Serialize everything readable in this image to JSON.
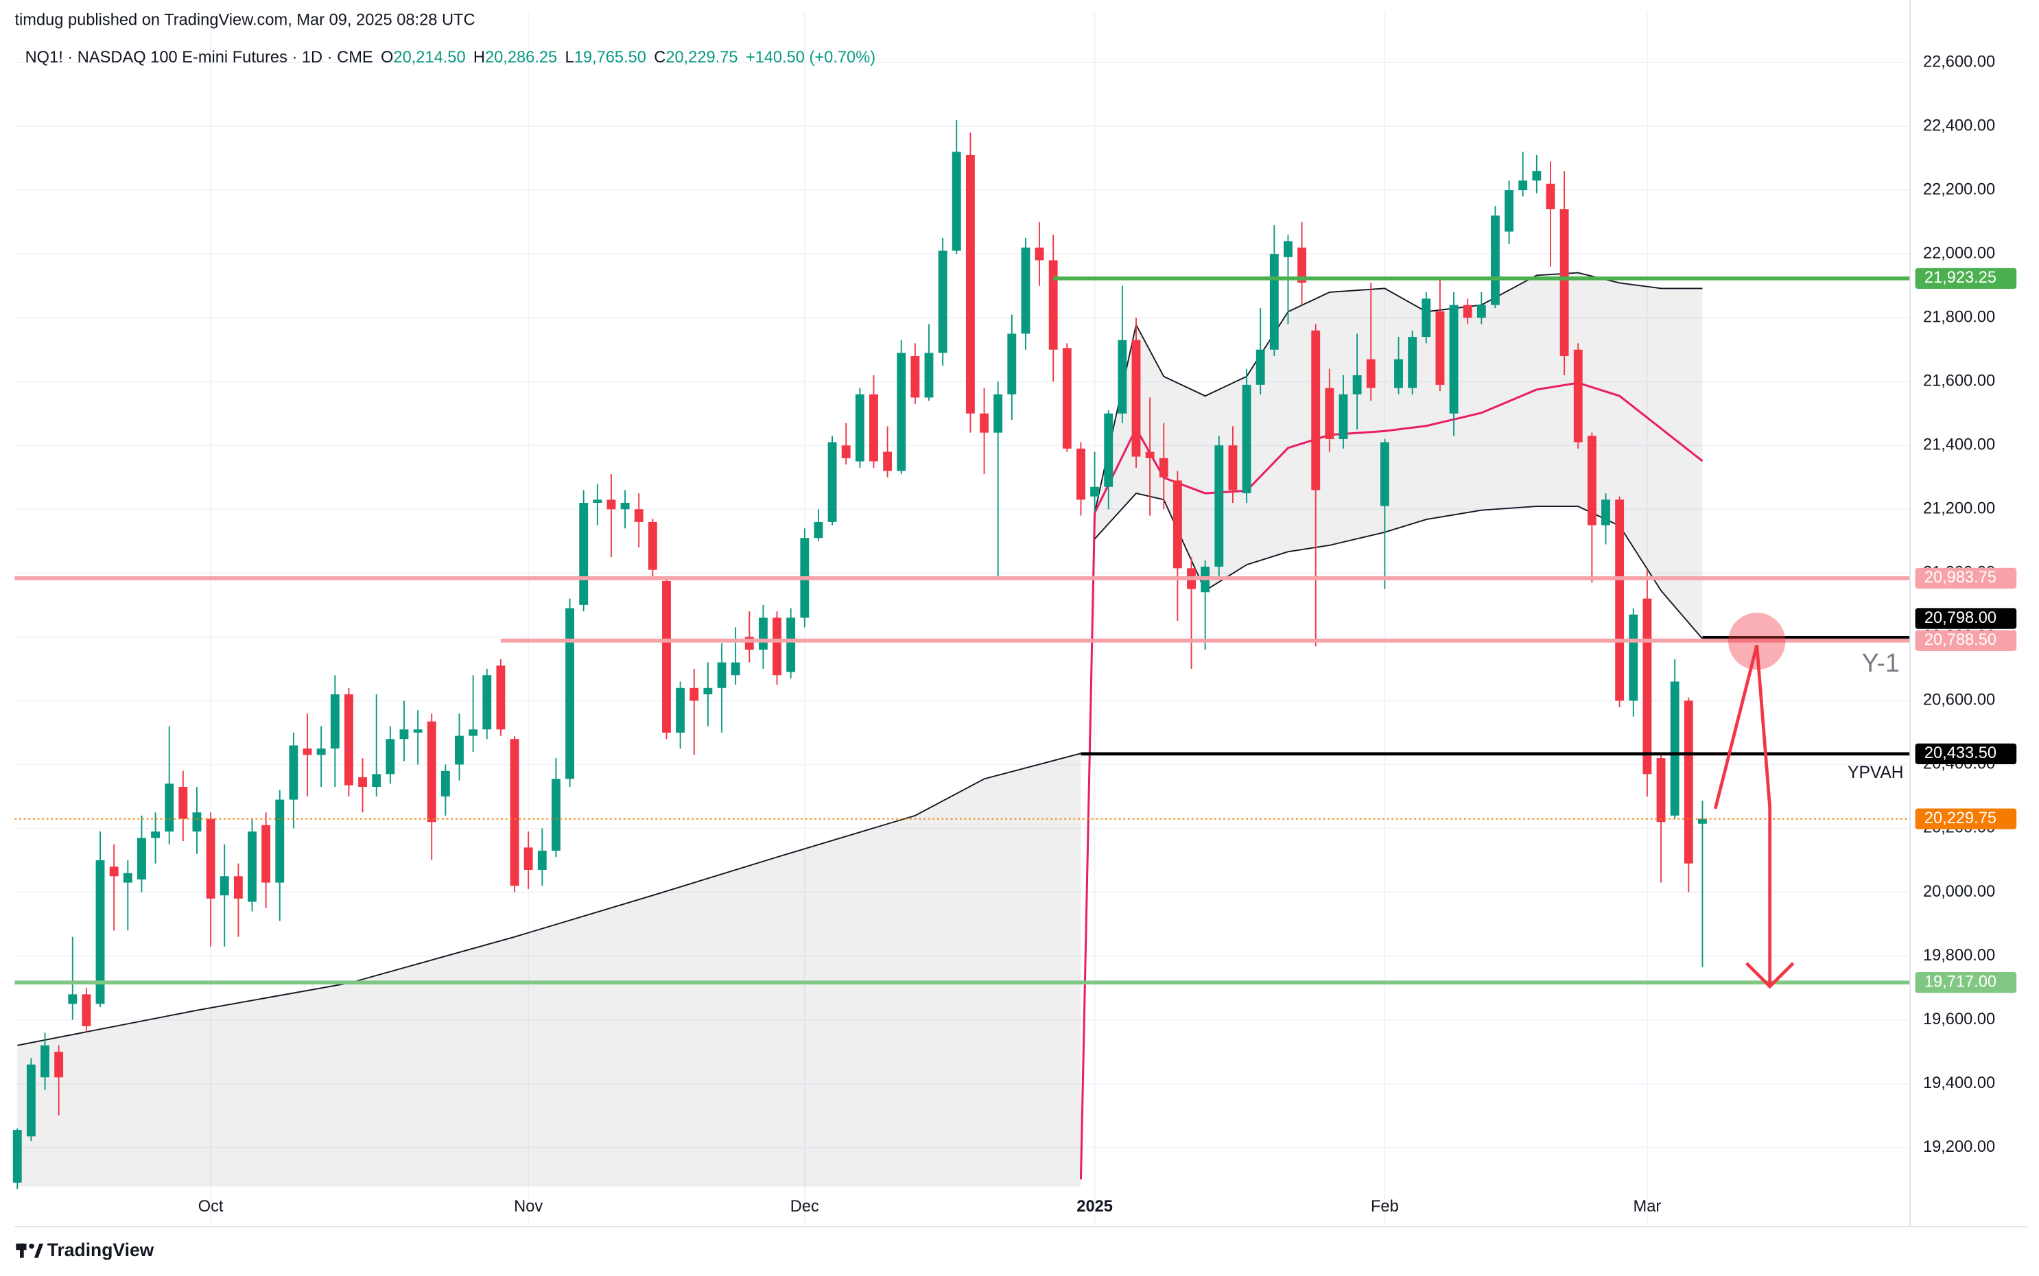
{
  "publisher": "timdug published on TradingView.com, Mar 09, 2025 08:28 UTC",
  "brand": "TradingView",
  "chart_data": {
    "type": "candlestick",
    "title": "NQ1! · NASDAQ 100 E-mini Futures · 1D · CME",
    "legend_values": [
      {
        "key": "O",
        "value": "20,214.50"
      },
      {
        "key": "H",
        "value": "20,286.25"
      },
      {
        "key": "L",
        "value": "19,765.50"
      },
      {
        "key": "C",
        "value": "20,229.75"
      }
    ],
    "change": "+140.50 (+0.70%)",
    "up_color": "#089981",
    "down_color": "#f23645",
    "ylim": [
      19078,
      22755
    ],
    "yticks": [
      {
        "value": 19200,
        "label": "19,200.00"
      },
      {
        "value": 19400,
        "label": "19,400.00"
      },
      {
        "value": 19600,
        "label": "19,600.00"
      },
      {
        "value": 19800,
        "label": "19,800.00"
      },
      {
        "value": 20000,
        "label": "20,000.00"
      },
      {
        "value": 20200,
        "label": "20,200.00"
      },
      {
        "value": 20400,
        "label": "20,400.00"
      },
      {
        "value": 20600,
        "label": "20,600.00"
      },
      {
        "value": 20800,
        "label": "20,800.00"
      },
      {
        "value": 21000,
        "label": "21,000.00"
      },
      {
        "value": 21200,
        "label": "21,200.00"
      },
      {
        "value": 21400,
        "label": "21,400.00"
      },
      {
        "value": 21600,
        "label": "21,600.00"
      },
      {
        "value": 21800,
        "label": "21,800.00"
      },
      {
        "value": 22000,
        "label": "22,000.00"
      },
      {
        "value": 22200,
        "label": "22,200.00"
      },
      {
        "value": 22400,
        "label": "22,400.00"
      },
      {
        "value": 22600,
        "label": "22,600.00"
      }
    ],
    "grid": true,
    "categories": [
      null,
      null,
      null,
      null,
      null,
      null,
      null,
      null,
      null,
      null,
      null,
      null,
      null,
      null,
      "Oct",
      null,
      null,
      null,
      null,
      null,
      null,
      null,
      null,
      null,
      null,
      null,
      null,
      null,
      null,
      null,
      null,
      null,
      null,
      null,
      null,
      null,
      null,
      "Nov",
      null,
      null,
      null,
      null,
      null,
      null,
      null,
      null,
      null,
      null,
      null,
      null,
      null,
      null,
      null,
      null,
      null,
      null,
      null,
      "Dec",
      null,
      null,
      null,
      null,
      null,
      null,
      null,
      null,
      null,
      null,
      null,
      null,
      null,
      null,
      null,
      null,
      null,
      null,
      null,
      null,
      "2025",
      null,
      null,
      null,
      null,
      null,
      null,
      null,
      null,
      null,
      null,
      null,
      null,
      null,
      null,
      null,
      null,
      null,
      null,
      null,
      null,
      "Feb",
      null,
      null,
      null,
      null,
      null,
      null,
      null,
      null,
      null,
      null,
      null,
      null,
      null,
      null,
      null,
      null,
      null,
      null,
      "Mar",
      null,
      null,
      null,
      null
    ],
    "candles": [
      [
        19090,
        19260,
        19070,
        19255
      ],
      [
        19235,
        19480,
        19220,
        19460
      ],
      [
        19420,
        19560,
        19380,
        19520
      ],
      [
        19500,
        19520,
        19300,
        19420
      ],
      [
        19650,
        19860,
        19600,
        19680
      ],
      [
        19680,
        19700,
        19560,
        19580
      ],
      [
        19650,
        20190,
        19640,
        20100
      ],
      [
        20080,
        20150,
        19880,
        20050
      ],
      [
        20030,
        20100,
        19880,
        20060
      ],
      [
        20040,
        20240,
        20000,
        20170
      ],
      [
        20170,
        20250,
        20090,
        20190
      ],
      [
        20190,
        20520,
        20150,
        20340
      ],
      [
        20330,
        20380,
        20160,
        20230
      ],
      [
        20190,
        20330,
        20120,
        20250
      ],
      [
        20230,
        20250,
        19830,
        19980
      ],
      [
        19990,
        20150,
        19830,
        20050
      ],
      [
        20050,
        20090,
        19860,
        19980
      ],
      [
        19970,
        20230,
        19940,
        20190
      ],
      [
        20210,
        20250,
        19950,
        20030
      ],
      [
        20030,
        20320,
        19910,
        20290
      ],
      [
        20290,
        20500,
        20200,
        20460
      ],
      [
        20450,
        20560,
        20300,
        20430
      ],
      [
        20430,
        20520,
        20330,
        20450
      ],
      [
        20450,
        20680,
        20330,
        20620
      ],
      [
        20620,
        20640,
        20300,
        20335
      ],
      [
        20360,
        20420,
        20250,
        20330
      ],
      [
        20330,
        20620,
        20300,
        20370
      ],
      [
        20370,
        20520,
        20340,
        20480
      ],
      [
        20480,
        20600,
        20410,
        20510
      ],
      [
        20500,
        20570,
        20400,
        20510
      ],
      [
        20535,
        20560,
        20100,
        20220
      ],
      [
        20300,
        20400,
        20240,
        20380
      ],
      [
        20400,
        20560,
        20350,
        20490
      ],
      [
        20490,
        20680,
        20440,
        20510
      ],
      [
        20510,
        20700,
        20480,
        20680
      ],
      [
        20710,
        20730,
        20490,
        20510
      ],
      [
        20480,
        20490,
        20000,
        20020
      ],
      [
        20140,
        20190,
        20010,
        20070
      ],
      [
        20070,
        20200,
        20020,
        20130
      ],
      [
        20130,
        20420,
        20110,
        20355
      ],
      [
        20355,
        20920,
        20330,
        20890
      ],
      [
        20900,
        21260,
        20880,
        21220
      ],
      [
        21220,
        21280,
        21150,
        21230
      ],
      [
        21230,
        21310,
        21050,
        21200
      ],
      [
        21200,
        21260,
        21140,
        21220
      ],
      [
        21200,
        21250,
        21080,
        21160
      ],
      [
        21160,
        21170,
        20990,
        21010
      ],
      [
        20975,
        20980,
        20480,
        20500
      ],
      [
        20500,
        20660,
        20450,
        20640
      ],
      [
        20640,
        20700,
        20430,
        20600
      ],
      [
        20620,
        20720,
        20520,
        20640
      ],
      [
        20640,
        20780,
        20500,
        20720
      ],
      [
        20680,
        20830,
        20650,
        20720
      ],
      [
        20800,
        20880,
        20720,
        20760
      ],
      [
        20760,
        20900,
        20700,
        20860
      ],
      [
        20860,
        20880,
        20650,
        20680
      ],
      [
        20690,
        20890,
        20670,
        20860
      ],
      [
        20860,
        21140,
        20830,
        21110
      ],
      [
        21110,
        21200,
        21100,
        21160
      ],
      [
        21160,
        21430,
        21150,
        21410
      ],
      [
        21400,
        21470,
        21340,
        21360
      ],
      [
        21350,
        21580,
        21330,
        21560
      ],
      [
        21560,
        21620,
        21330,
        21350
      ],
      [
        21380,
        21460,
        21300,
        21320
      ],
      [
        21320,
        21730,
        21310,
        21690
      ],
      [
        21680,
        21720,
        21530,
        21550
      ],
      [
        21550,
        21780,
        21540,
        21690
      ],
      [
        21690,
        22050,
        21650,
        22010
      ],
      [
        22010,
        22420,
        22000,
        22320
      ],
      [
        22310,
        22380,
        21440,
        21500
      ],
      [
        21500,
        21580,
        21310,
        21440
      ],
      [
        21440,
        21600,
        20990,
        21560
      ],
      [
        21560,
        21810,
        21480,
        21750
      ],
      [
        21750,
        22050,
        21700,
        22020
      ],
      [
        22020,
        22100,
        21900,
        21980
      ],
      [
        21980,
        22060,
        21600,
        21700
      ],
      [
        21705,
        21720,
        21380,
        21390
      ],
      [
        21390,
        21410,
        21180,
        21230
      ],
      [
        21240,
        21380,
        21190,
        21270
      ],
      [
        21270,
        21510,
        21200,
        21500
      ],
      [
        21500,
        21900,
        21470,
        21730
      ],
      [
        21730,
        21800,
        21330,
        21365
      ],
      [
        21380,
        21550,
        21180,
        21360
      ],
      [
        21360,
        21470,
        21200,
        21300
      ],
      [
        21290,
        21320,
        20850,
        21015
      ],
      [
        21015,
        21050,
        20700,
        20950
      ],
      [
        20940,
        21040,
        20760,
        21020
      ],
      [
        21020,
        21430,
        20990,
        21400
      ],
      [
        21400,
        21460,
        21220,
        21260
      ],
      [
        21250,
        21640,
        21220,
        21590
      ],
      [
        21590,
        21830,
        21560,
        21700
      ],
      [
        21700,
        22090,
        21680,
        22000
      ],
      [
        21990,
        22060,
        21780,
        22040
      ],
      [
        22020,
        22100,
        21840,
        21910
      ],
      [
        21760,
        21780,
        20770,
        21260
      ],
      [
        21580,
        21640,
        21380,
        21420
      ],
      [
        21420,
        21620,
        21390,
        21560
      ],
      [
        21560,
        21750,
        21450,
        21620
      ],
      [
        21670,
        21910,
        21540,
        21580
      ],
      [
        21210,
        21420,
        20950,
        21410
      ],
      [
        21580,
        21740,
        21560,
        21670
      ],
      [
        21580,
        21760,
        21560,
        21740
      ],
      [
        21740,
        21880,
        21720,
        21860
      ],
      [
        21820,
        21920,
        21570,
        21590
      ],
      [
        21500,
        21880,
        21430,
        21840
      ],
      [
        21840,
        21860,
        21780,
        21800
      ],
      [
        21800,
        21880,
        21780,
        21840
      ],
      [
        21840,
        22150,
        21830,
        22120
      ],
      [
        22070,
        22230,
        22030,
        22200
      ],
      [
        22200,
        22320,
        22180,
        22230
      ],
      [
        22230,
        22310,
        22190,
        22260
      ],
      [
        22220,
        22290,
        21960,
        22140
      ],
      [
        22140,
        22260,
        21620,
        21680
      ],
      [
        21700,
        21720,
        21390,
        21410
      ],
      [
        21430,
        21440,
        20970,
        21150
      ],
      [
        21150,
        21250,
        21090,
        21230
      ],
      [
        21230,
        21240,
        20580,
        20600
      ],
      [
        20600,
        20890,
        20550,
        20870
      ],
      [
        20920,
        21010,
        20300,
        20370
      ],
      [
        20420,
        20430,
        20030,
        20220
      ],
      [
        20240,
        20730,
        20230,
        20660
      ],
      [
        20600,
        20610,
        20000,
        20090
      ],
      [
        20214.5,
        20286.25,
        19765.5,
        20229.75
      ]
    ],
    "series": [
      {
        "color": "#131722",
        "x": [
          0,
          13,
          24,
          36,
          46,
          55,
          65,
          70,
          77
        ],
        "values": [
          19520,
          19630,
          19715,
          19860,
          19990,
          20110,
          20240,
          20355,
          20435
        ]
      },
      {
        "color": "#131722",
        "x": [
          78,
          81,
          83,
          86,
          89,
          92,
          95,
          99,
          102,
          106,
          110,
          113,
          116,
          119,
          122
        ],
        "values": [
          21189,
          21778,
          21616,
          21555,
          21616,
          21819,
          21880,
          21892,
          21819,
          21840,
          21933,
          21941,
          21909,
          21892,
          21892
        ]
      },
      {
        "color": "#e91e63",
        "x": [
          77,
          78,
          81,
          83,
          86,
          89,
          92,
          95,
          99,
          102,
          106,
          110,
          113,
          116,
          119,
          122
        ],
        "values": [
          19100,
          21189,
          21453,
          21299,
          21250,
          21258,
          21392,
          21433,
          21445,
          21461,
          21502,
          21575,
          21596,
          21555,
          21453,
          21351
        ]
      },
      {
        "color": "#131722",
        "x": [
          78,
          81,
          83,
          86,
          89,
          92,
          95,
          99,
          102,
          106,
          110,
          113,
          116,
          119,
          122
        ],
        "values": [
          21107,
          21250,
          21230,
          20945,
          21026,
          21067,
          21087,
          21128,
          21168,
          21197,
          21209,
          21209,
          21148,
          20945,
          20794
        ]
      }
    ],
    "hlines": [
      {
        "value": 21923.25,
        "label": "21,923.25",
        "color": "#4caf50",
        "x_start": 75
      },
      {
        "value": 20983.75,
        "label": "20,983.75",
        "color": "#f7a1a8"
      },
      {
        "value": 20798,
        "label": "20,798.00",
        "color": "#000000",
        "x_start": 122
      },
      {
        "value": 20788.5,
        "label": "20,788.50",
        "color": "#f7a1a8",
        "x_start": 35
      },
      {
        "value": 20433.5,
        "label": "20,433.50",
        "color": "#000000",
        "x_start": 77
      },
      {
        "value": 20229.75,
        "label": "20,229.75",
        "color": "#f57c00",
        "dotted": true
      },
      {
        "value": 19717,
        "label": "19,717.00",
        "color": "#81c784"
      }
    ],
    "annotations": [
      "Y-1",
      "YPVAH"
    ]
  }
}
